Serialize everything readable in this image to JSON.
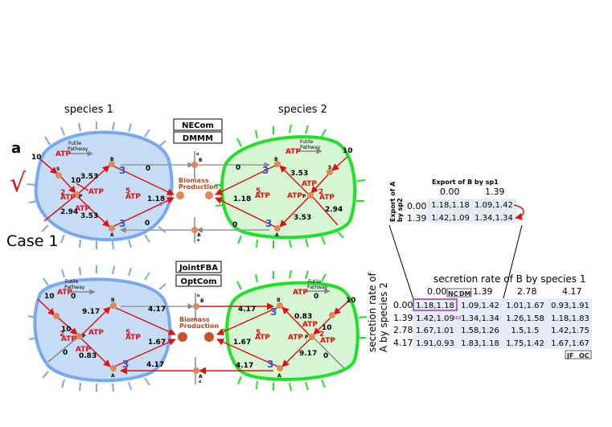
{
  "colors": {
    "cell1_fill": "#c6ddf8",
    "cell1_edge": "#7aa8ee",
    "cell2_fill": "#d6f7d3",
    "cell2_edge": "#22e02a",
    "arrow": "#e01010",
    "node": "#e0885a",
    "cell_grid": "#e6ecf7",
    "highlight": "#9b30d9"
  },
  "labels": {
    "species1": "species 1",
    "species2": "species 2",
    "panel": "a",
    "check": "√",
    "case": "Case 1",
    "method_necom": "NECom",
    "method_dmmm": "DMMM",
    "method_jointfba": "JointFBA",
    "method_optcom": "OptCom",
    "biomass1": "Biomass",
    "biomass2": "Production",
    "futile1": "Futile",
    "futile2": "Pathway",
    "atp": "ATP",
    "node_s": "S",
    "node_p": "P",
    "node_a": "A",
    "node_b": "B",
    "node_o": "o"
  },
  "top": {
    "s1": {
      "in": "10",
      "v1": "10",
      "v2": "3.53",
      "v3": "2.94",
      "v4": "3.53",
      "b3a": "3",
      "b3b": "3",
      "b0a": "0",
      "b0b": "0",
      "bio": "1.18",
      "r2": "2",
      "r5a": "5",
      "r5b": "5"
    },
    "s2": {
      "in": "10",
      "v1": "3.53",
      "v2": "2.94",
      "v3": "3.53",
      "b3a": "3",
      "b3b": "3",
      "b0a": "0",
      "b0b": "0",
      "bio": "1.18",
      "r2": "2",
      "r5": "5"
    }
  },
  "bottom": {
    "s1": {
      "in": "10",
      "zero_in": "0",
      "v1": "9.17",
      "v2": "10",
      "v3": "0",
      "v4": "0.83",
      "b3": "3",
      "b4a": "4.17",
      "b4b": "4.17",
      "bio": "1.67",
      "r2": "2",
      "r5": "5"
    },
    "s2": {
      "in": "10",
      "zero_in": "0",
      "v1": "0.83",
      "v2": "10",
      "v3": "9.17",
      "v4": "0",
      "b3a": "3",
      "b3b": "3",
      "b4a": "4.17",
      "b4b": "4.17",
      "bio": "1.67",
      "r2": "2",
      "r5": "5"
    }
  },
  "small_table": {
    "title": "Export of B by sp1",
    "ylabel1": "Export of A",
    "ylabel2": "by sp2",
    "cols": [
      "0.00",
      "1.39"
    ],
    "rows": [
      {
        "h": "0.00",
        "c": [
          "1.18,1.18",
          "1.09,1.42"
        ]
      },
      {
        "h": "1.39",
        "c": [
          "1.42,1.09",
          "1.34,1.34"
        ]
      }
    ]
  },
  "big_table": {
    "title": "secretion rate of B by species 1",
    "ylabel1": "secretion rate of",
    "ylabel2": "A by species 2",
    "cols": [
      "0.00",
      "1.39",
      "2.78",
      "4.17"
    ],
    "rows": [
      {
        "h": "0.00",
        "c": [
          "1.18,1.18",
          "1.09,1.42",
          "1.01,1.67",
          "0.93,1.91"
        ]
      },
      {
        "h": "1.39",
        "c": [
          "1.42,1.09",
          "1.34,1.34",
          "1.26,1.58",
          "1.18,1.83"
        ]
      },
      {
        "h": "2.78",
        "c": [
          "1.67,1.01",
          "1.58,1.26",
          "1.5,1.5",
          "1.42,1.75"
        ]
      },
      {
        "h": "4.17",
        "c": [
          "1.91,0.93",
          "1.83,1.18",
          "1.75,1.42",
          "1.67,1.67"
        ]
      }
    ],
    "tag_nc": "NC",
    "tag_dm": "DM",
    "tag_jf": "JF",
    "tag_oc": "OC",
    "tag_dots": "sss"
  }
}
